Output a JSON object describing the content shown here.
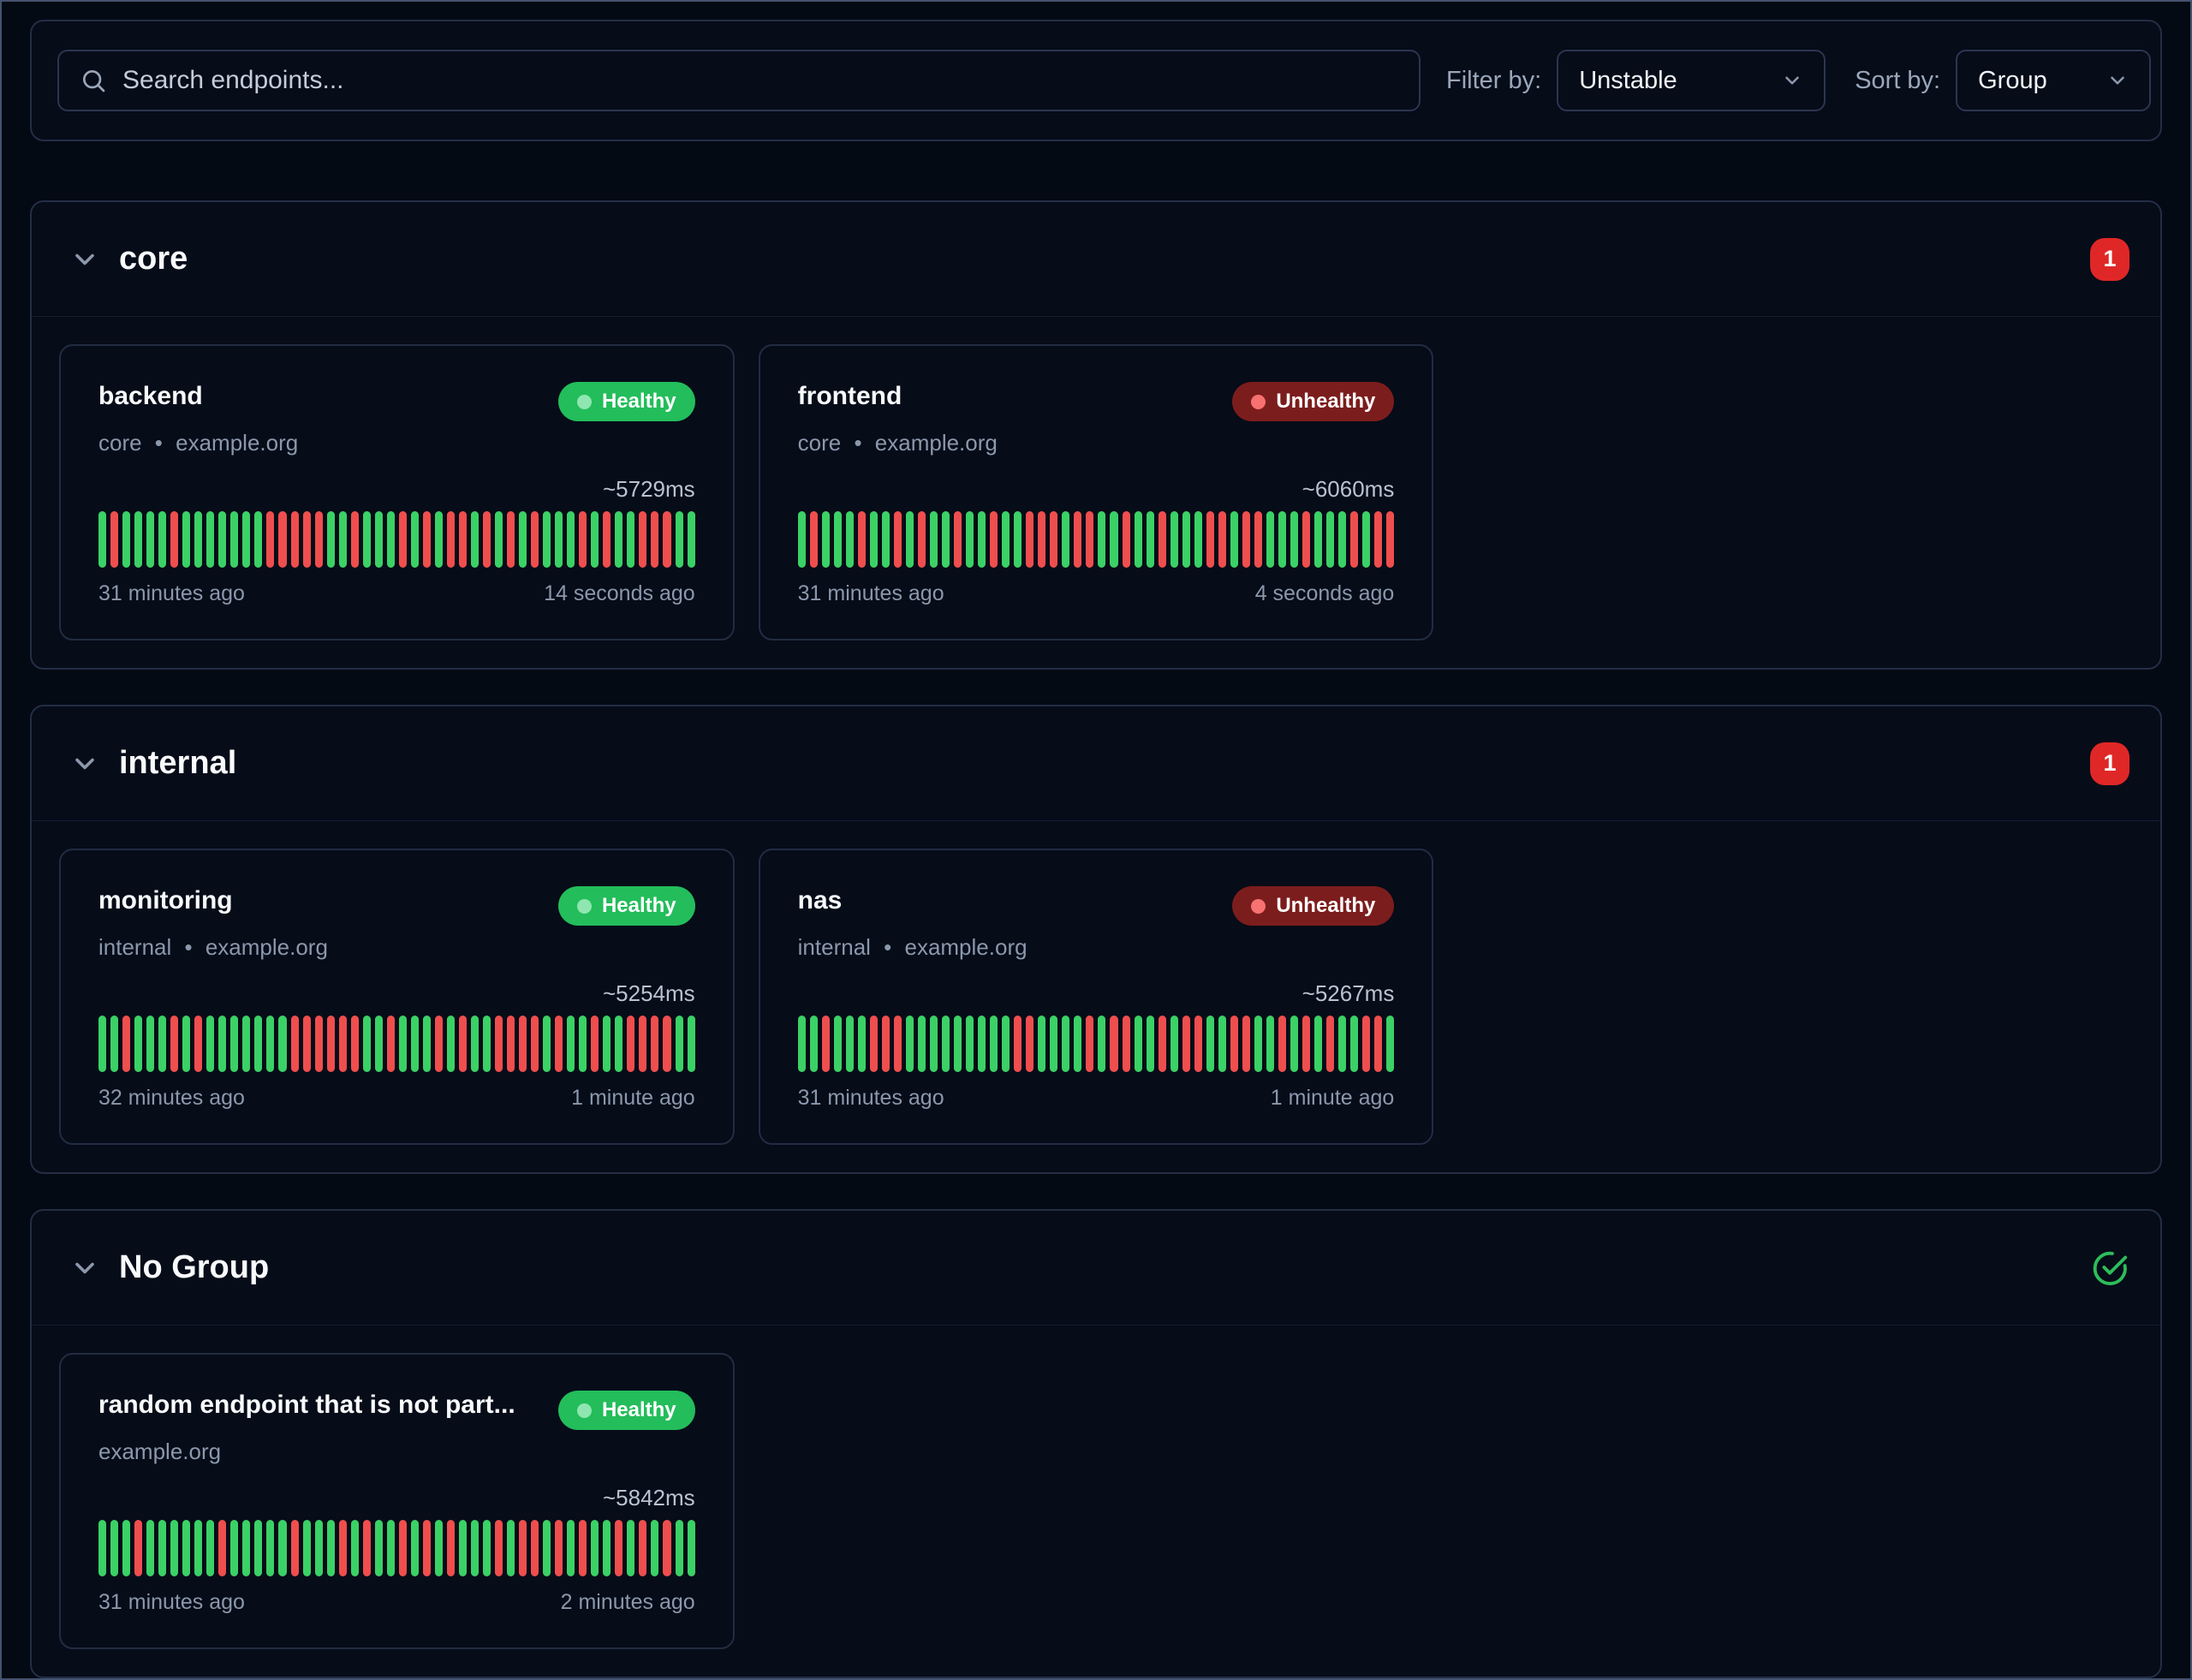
{
  "toolbar": {
    "search_placeholder": "Search endpoints...",
    "search_value": "",
    "filter_label": "Filter by:",
    "filter_value": "Unstable",
    "sort_label": "Sort by:",
    "sort_value": "Group"
  },
  "colors": {
    "background": "#040a14",
    "panel_border": "#232e45",
    "healthy_bar": "#3bd166",
    "unhealthy_bar": "#ef4e4e",
    "healthy_badge": "#23bd5b",
    "unhealthy_badge": "#7c1d1d",
    "count_badge": "#e02727",
    "ok_check": "#2dbd5a"
  },
  "groups": [
    {
      "title": "core",
      "count_badge": "1",
      "endpoints": [
        {
          "name": "backend",
          "meta": "core • example.org",
          "status": "Healthy",
          "status_class": "healthy",
          "response_time": "~5729ms",
          "start_label": "31 minutes ago",
          "end_label": "14 seconds ago",
          "history": "GRGGGGRGGGGGGGRRRRRGGRGGGRGRGRRGRGRGRGGGRGRGGRRRGG"
        },
        {
          "name": "frontend",
          "meta": "core • example.org",
          "status": "Unhealthy",
          "status_class": "unhealthy",
          "response_time": "~6060ms",
          "start_label": "31 minutes ago",
          "end_label": "4 seconds ago",
          "history": "GRGGGRGGRGRGGRGGRGGRRRGRRGGRGGRGGGRRGRRGGGRGGGRGRR"
        }
      ]
    },
    {
      "title": "internal",
      "count_badge": "1",
      "endpoints": [
        {
          "name": "monitoring",
          "meta": "internal • example.org",
          "status": "Healthy",
          "status_class": "healthy",
          "response_time": "~5254ms",
          "start_label": "32 minutes ago",
          "end_label": "1 minute ago",
          "history": "GGRGGGRGRGGGGGGGRRRRRRGGRGGGRGRGGRRRRGRGGRGGRRRRGG"
        },
        {
          "name": "nas",
          "meta": "internal • example.org",
          "status": "Unhealthy",
          "status_class": "unhealthy",
          "response_time": "~5267ms",
          "start_label": "31 minutes ago",
          "end_label": "1 minute ago",
          "history": "GGRGGGRRRGGGGGGGGGRRGGGGRGRRGGRGRRGGRRGGRGRGRGGRRG"
        }
      ]
    },
    {
      "title": "No Group",
      "count_badge": null,
      "endpoints": [
        {
          "name": "random endpoint that is not part...",
          "meta": "example.org",
          "status": "Healthy",
          "status_class": "healthy",
          "response_time": "~5842ms",
          "start_label": "31 minutes ago",
          "end_label": "2 minutes ago",
          "history": "GGGRGGGGGGRGGGGGRGGGRGRGGRGRGRGGGRGRRGRGRGGRGRGRGG"
        }
      ]
    }
  ]
}
